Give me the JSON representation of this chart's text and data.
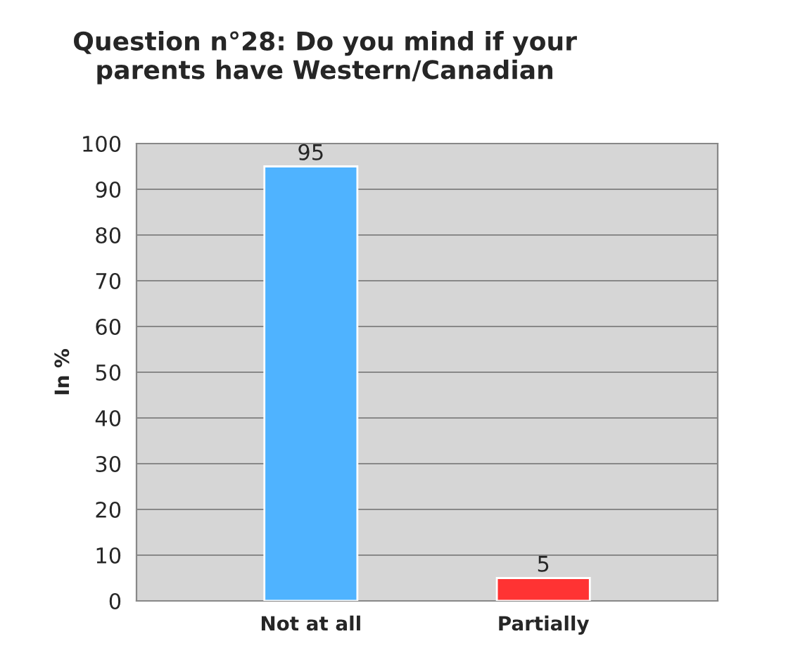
{
  "chart_data": {
    "type": "bar",
    "title": "Question n°28: Do you mind if your\nparents have Western/Canadian",
    "ylabel": "In %",
    "categories": [
      "Not at all",
      "Partially"
    ],
    "series": [
      {
        "values": [
          95,
          5
        ],
        "colors": [
          "#4fb3ff",
          "#ff3333"
        ]
      }
    ],
    "ylim": [
      0,
      100
    ],
    "yticks": [
      0,
      10,
      20,
      30,
      40,
      50,
      60,
      70,
      80,
      90,
      100
    ],
    "grid": "y",
    "data_labels": true,
    "legend": false
  }
}
